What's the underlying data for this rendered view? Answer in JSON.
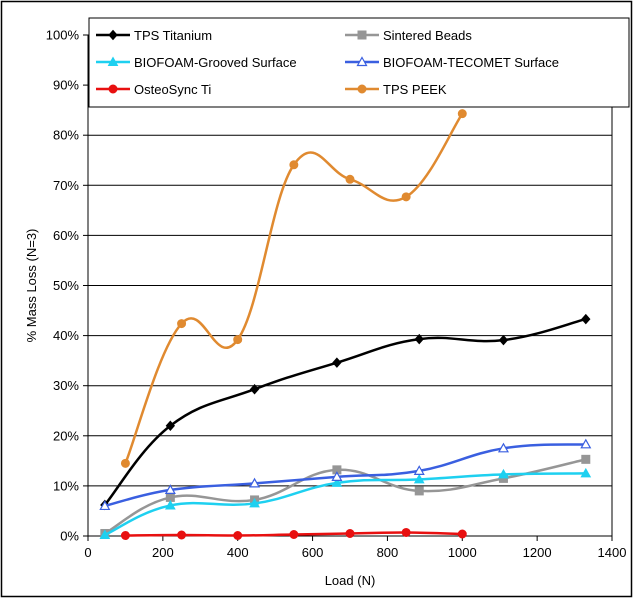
{
  "chart_data": {
    "type": "line",
    "title": "",
    "xlabel": "Load (N)",
    "ylabel": "% Mass Loss (N=3)",
    "xlim": [
      0,
      1400
    ],
    "ylim": [
      0,
      1.0
    ],
    "x_ticks": [
      "0",
      "200",
      "400",
      "600",
      "800",
      "1000",
      "1200",
      "1400"
    ],
    "y_ticks": [
      "0%",
      "10%",
      "20%",
      "30%",
      "40%",
      "50%",
      "60%",
      "70%",
      "80%",
      "90%",
      "100%"
    ],
    "grid": "horizontal",
    "legend_position": "top",
    "series": [
      {
        "name": "TPS Titanium",
        "color": "#000000",
        "marker": "diamond",
        "x": [
          45,
          220,
          445,
          665,
          885,
          1110,
          1330
        ],
        "y": [
          0.062,
          0.22,
          0.293,
          0.346,
          0.393,
          0.391,
          0.433
        ]
      },
      {
        "name": "Sintered Beads",
        "color": "#969696",
        "marker": "square",
        "x": [
          45,
          220,
          445,
          665,
          885,
          1110,
          1330
        ],
        "y": [
          0.005,
          0.077,
          0.072,
          0.132,
          0.09,
          0.115,
          0.153
        ]
      },
      {
        "name": "BIOFOAM-Grooved Surface",
        "color": "#1ED0F0",
        "marker": "triangle",
        "x": [
          45,
          220,
          445,
          665,
          885,
          1110,
          1330
        ],
        "y": [
          0.002,
          0.061,
          0.065,
          0.106,
          0.113,
          0.123,
          0.125
        ]
      },
      {
        "name": "BIOFOAM-TECOMET Surface",
        "color": "#3A5FE0",
        "marker": "triangle-open",
        "x": [
          45,
          220,
          445,
          665,
          885,
          1110,
          1330
        ],
        "y": [
          0.06,
          0.092,
          0.105,
          0.118,
          0.13,
          0.175,
          0.183
        ]
      },
      {
        "name": "OsteoSync Ti",
        "color": "#E81010",
        "marker": "circle",
        "x": [
          100,
          250,
          400,
          550,
          700,
          850,
          1000
        ],
        "y": [
          0.001,
          0.002,
          0.001,
          0.003,
          0.005,
          0.007,
          0.004
        ]
      },
      {
        "name": "TPS PEEK",
        "color": "#E08A30",
        "marker": "circle",
        "x": [
          100,
          250,
          400,
          550,
          700,
          850,
          1000
        ],
        "y": [
          0.145,
          0.424,
          0.392,
          0.741,
          0.712,
          0.677,
          0.843
        ]
      }
    ]
  }
}
